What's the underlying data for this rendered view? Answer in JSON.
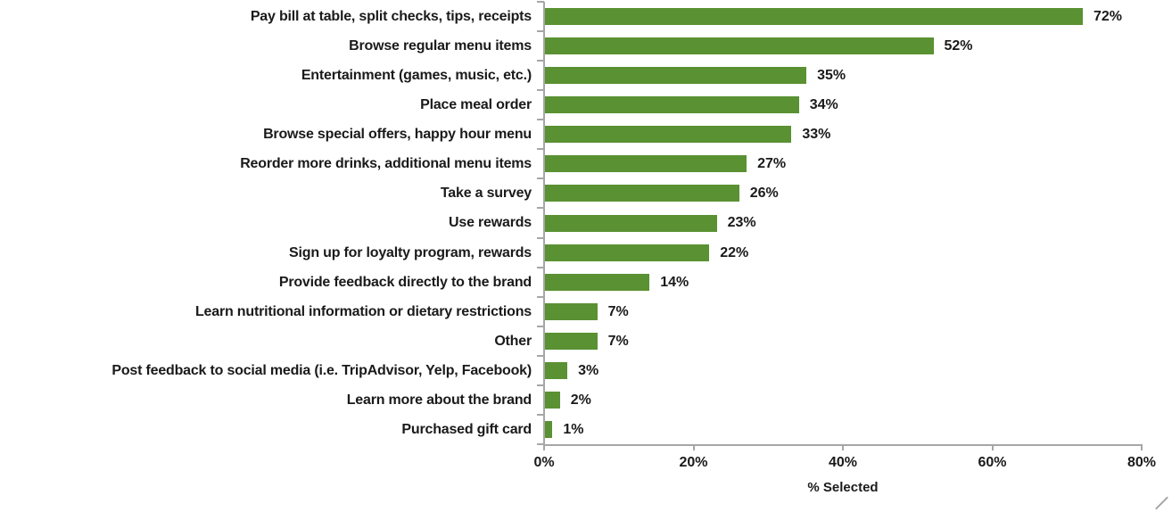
{
  "chart_data": {
    "type": "bar",
    "orientation": "horizontal",
    "title": "",
    "xlabel": "% Selected",
    "ylabel": "",
    "xlim": [
      0,
      80
    ],
    "grid": false,
    "legend": false,
    "categories": [
      "Pay bill at table, split checks, tips, receipts",
      "Browse regular menu items",
      "Entertainment (games, music, etc.)",
      "Place meal order",
      "Browse special offers, happy hour menu",
      "Reorder more drinks, additional menu items",
      "Take a survey",
      "Use rewards",
      "Sign up for loyalty program, rewards",
      "Provide feedback directly to the brand",
      "Learn nutritional information or dietary restrictions",
      "Other",
      "Post feedback to social media (i.e. TripAdvisor, Yelp, Facebook)",
      "Learn more about the brand",
      "Purchased gift card"
    ],
    "values": [
      72,
      52,
      35,
      34,
      33,
      27,
      26,
      23,
      22,
      14,
      7,
      7,
      3,
      2,
      1
    ],
    "value_labels": [
      "72%",
      "52%",
      "35%",
      "34%",
      "33%",
      "27%",
      "26%",
      "23%",
      "22%",
      "14%",
      "7%",
      "7%",
      "3%",
      "2%",
      "1%"
    ],
    "x_tick_labels": [
      "0%",
      "20%",
      "40%",
      "60%",
      "80%"
    ],
    "colors": {
      "bar": "#5a9132",
      "axis": "#a6a6a6",
      "text": "#1a1a1a",
      "background": "#ffffff"
    }
  }
}
